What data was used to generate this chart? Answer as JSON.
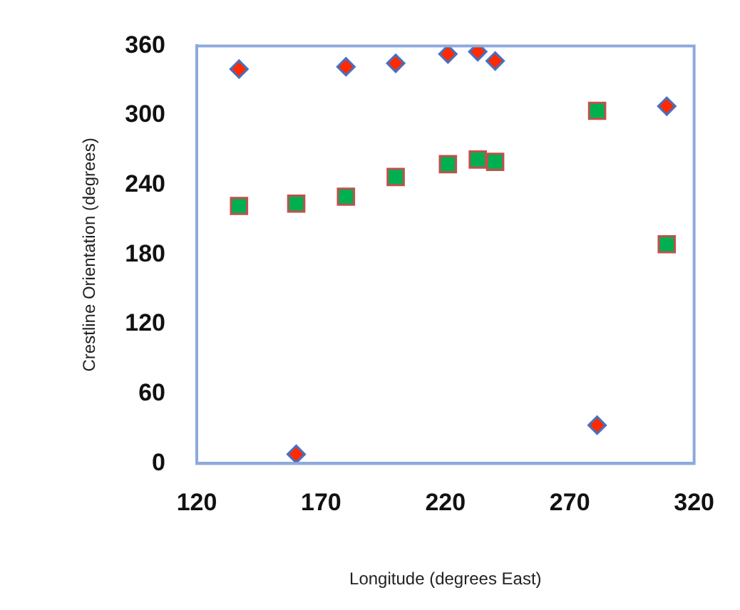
{
  "chart_data": {
    "type": "scatter",
    "xlabel": "Longitude (degrees East)",
    "ylabel": "Crestline Orientation (degrees)",
    "xlim": [
      120,
      320
    ],
    "xticks": [
      120,
      170,
      220,
      270,
      320
    ],
    "ylim": [
      0,
      360
    ],
    "yticks": [
      0,
      60,
      120,
      180,
      240,
      300,
      360
    ],
    "grid": false,
    "legend": false,
    "series": [
      {
        "color": "#ff2a00",
        "marker": "diamond",
        "x": [
          137,
          160,
          180,
          200,
          221,
          233,
          240,
          281,
          309
        ],
        "values": [
          340,
          8,
          342,
          345,
          353,
          355,
          347,
          33,
          308
        ]
      },
      {
        "color": "#00b050",
        "marker": "square",
        "x": [
          137,
          160,
          180,
          200,
          221,
          233,
          240,
          281,
          309
        ],
        "values": [
          222,
          224,
          230,
          247,
          258,
          262,
          260,
          304,
          189
        ]
      }
    ]
  }
}
